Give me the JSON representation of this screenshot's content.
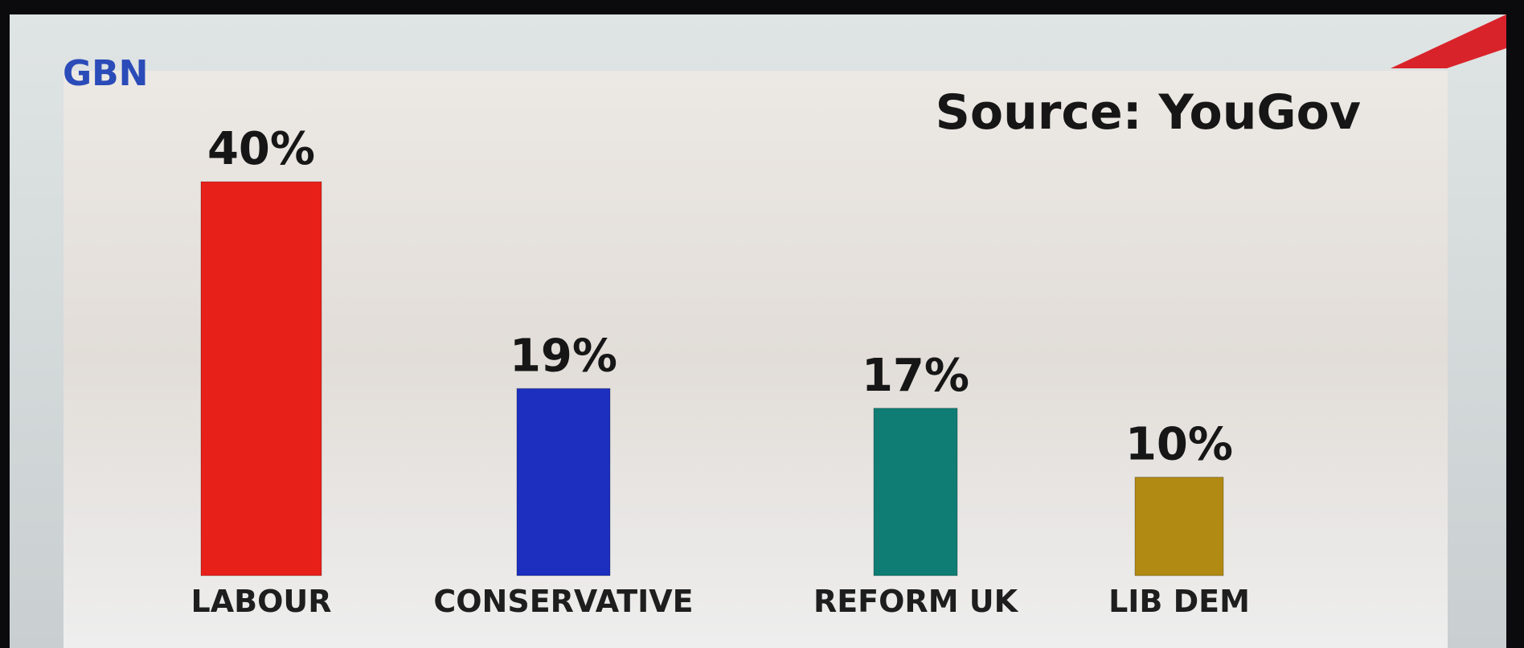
{
  "chart_data": {
    "type": "bar",
    "logo": "GBN",
    "title": "Source: YouGov",
    "categories": [
      "LABOUR",
      "CONSERVATIVE",
      "REFORM UK",
      "LIB DEM"
    ],
    "values": [
      40,
      19,
      17,
      10
    ],
    "value_labels": [
      "40%",
      "19%",
      "17%",
      "10%"
    ],
    "colors": [
      "#e8201a",
      "#1c2fbf",
      "#0f7d73",
      "#b08a12"
    ]
  }
}
